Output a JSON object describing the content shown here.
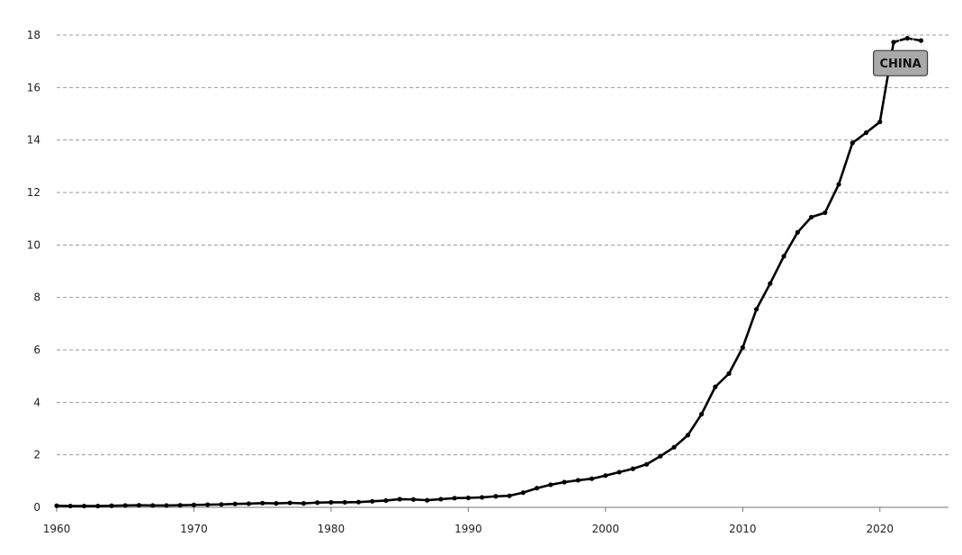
{
  "chart_data": {
    "type": "line",
    "title": "",
    "xlabel": "",
    "ylabel": "",
    "xlim": [
      1960,
      2025
    ],
    "ylim": [
      0,
      18
    ],
    "x_ticks": [
      1960,
      1970,
      1980,
      1990,
      2000,
      2010,
      2020
    ],
    "y_ticks": [
      0,
      2,
      4,
      6,
      8,
      10,
      12,
      14,
      16,
      18
    ],
    "grid": "horizontal-dashed",
    "series": [
      {
        "name": "CHINA",
        "color": "#000000",
        "x": [
          1960,
          1961,
          1962,
          1963,
          1964,
          1965,
          1966,
          1967,
          1968,
          1969,
          1970,
          1971,
          1972,
          1973,
          1974,
          1975,
          1976,
          1977,
          1978,
          1979,
          1980,
          1981,
          1982,
          1983,
          1984,
          1985,
          1986,
          1987,
          1988,
          1989,
          1990,
          1991,
          1992,
          1993,
          1994,
          1995,
          1996,
          1997,
          1998,
          1999,
          2000,
          2001,
          2002,
          2003,
          2004,
          2005,
          2006,
          2007,
          2008,
          2009,
          2010,
          2011,
          2012,
          2013,
          2014,
          2015,
          2016,
          2017,
          2018,
          2019,
          2020,
          2021,
          2022,
          2023
        ],
        "y": [
          0.06,
          0.05,
          0.05,
          0.05,
          0.06,
          0.07,
          0.08,
          0.07,
          0.07,
          0.08,
          0.09,
          0.1,
          0.11,
          0.13,
          0.14,
          0.16,
          0.15,
          0.17,
          0.15,
          0.18,
          0.19,
          0.19,
          0.2,
          0.23,
          0.26,
          0.31,
          0.3,
          0.27,
          0.31,
          0.35,
          0.36,
          0.38,
          0.42,
          0.44,
          0.56,
          0.73,
          0.86,
          0.96,
          1.03,
          1.09,
          1.21,
          1.34,
          1.47,
          1.64,
          1.95,
          2.29,
          2.75,
          3.55,
          4.59,
          5.1,
          6.09,
          7.55,
          8.53,
          9.57,
          10.48,
          11.06,
          11.23,
          12.31,
          13.89,
          14.28,
          14.69,
          17.73,
          17.88,
          17.79
        ]
      }
    ],
    "annotations": [
      {
        "text": "CHINA",
        "series": "CHINA",
        "x": 2021.3,
        "y": 17.0
      }
    ]
  }
}
